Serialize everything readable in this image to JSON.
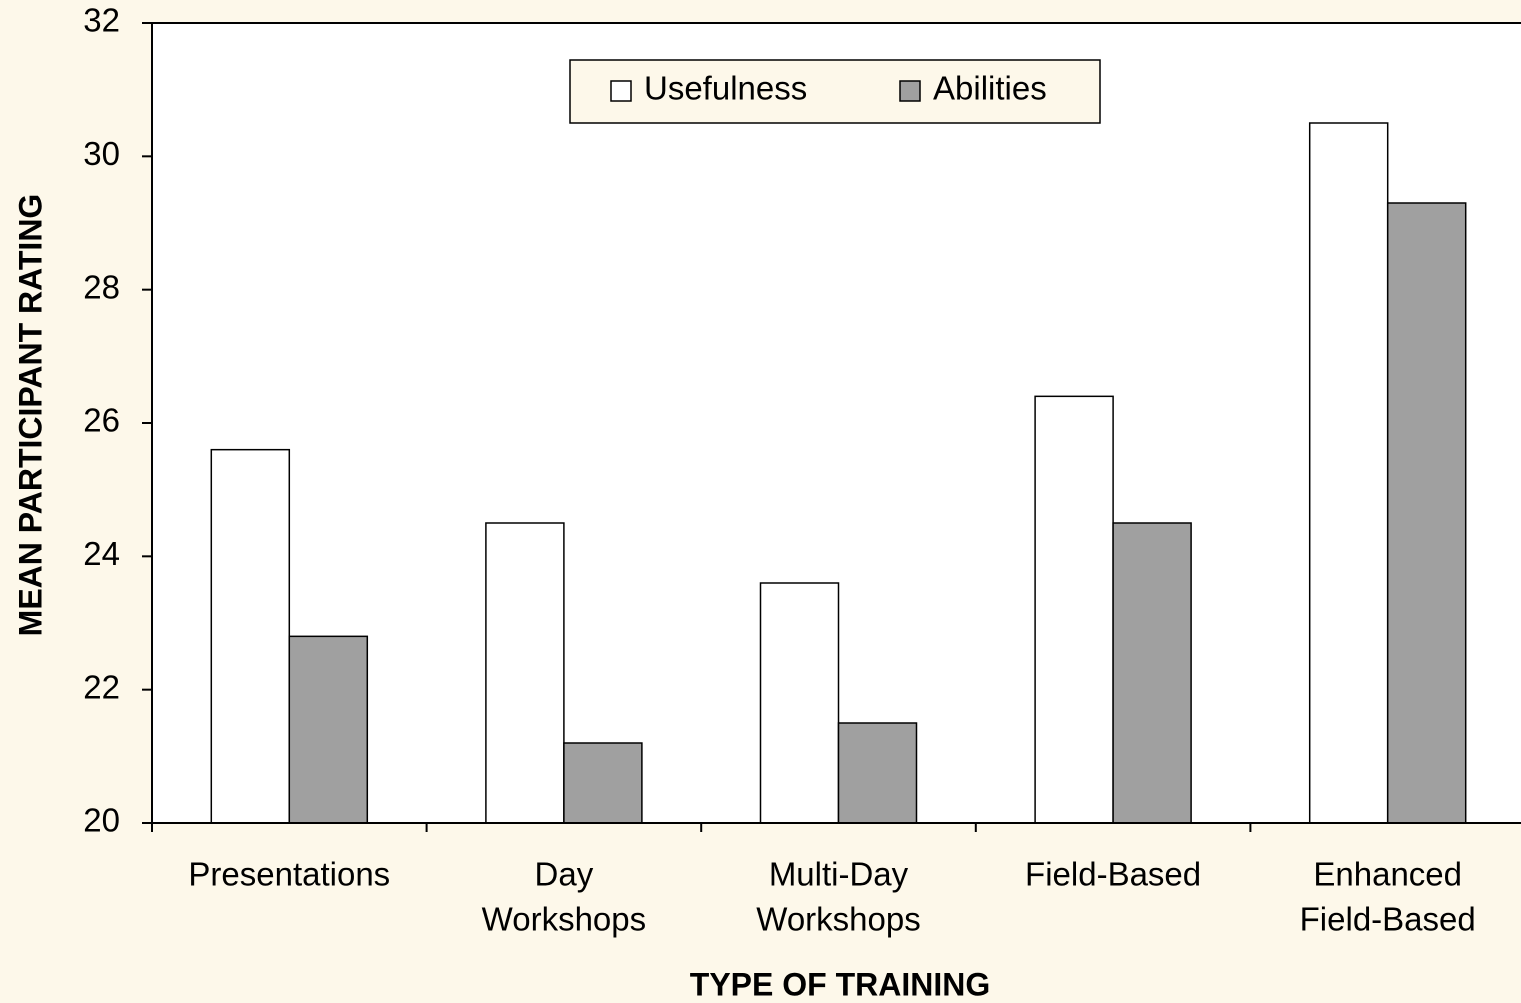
{
  "chart_data": {
    "type": "bar",
    "x_label": "TYPE OF TRAINING",
    "y_label": "MEAN PARTICIPANT RATING",
    "categories": [
      [
        "Presentations"
      ],
      [
        "Day",
        "Workshops"
      ],
      [
        "Multi-Day",
        "Workshops"
      ],
      [
        "Field-Based"
      ],
      [
        "Enhanced",
        "Field-Based"
      ]
    ],
    "series": [
      {
        "name": "Usefulness",
        "color": "#ffffff",
        "values": [
          25.6,
          24.5,
          23.6,
          26.4,
          30.5
        ]
      },
      {
        "name": "Abilities",
        "color": "#a0a0a0",
        "values": [
          22.8,
          21.2,
          21.5,
          24.5,
          29.3
        ]
      }
    ],
    "ylim": [
      20,
      32
    ],
    "yticks": [
      20,
      22,
      24,
      26,
      28,
      30,
      32
    ],
    "grid": false,
    "legend": "top"
  }
}
